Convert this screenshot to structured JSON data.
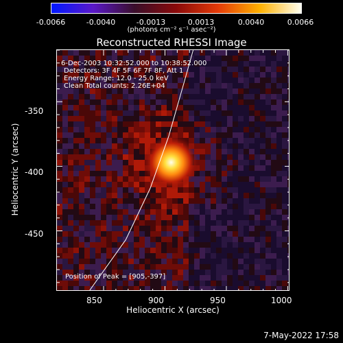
{
  "colorbar": {
    "ticks": [
      "-0.0066",
      "-0.0040",
      "-0.0013",
      "0.0013",
      "0.0040",
      "0.0066"
    ],
    "unit": "(photons cm⁻² s⁻¹ asec⁻²)",
    "colors": [
      "#0018ff",
      "#5a18c8",
      "#3a0e2a",
      "#8a0a0a",
      "#e43a08",
      "#ffb000",
      "#fffff0"
    ]
  },
  "chart_data": {
    "type": "heatmap",
    "title": "Reconstructed RHESSI Image",
    "xlabel": "Heliocentric X (arcsec)",
    "ylabel": "Heliocentric Y (arcsec)",
    "xlim": [
      812,
      1002
    ],
    "ylim": [
      -497,
      -310
    ],
    "xticks": [
      "850",
      "900",
      "950",
      "1000"
    ],
    "yticks": [
      "-350",
      "-400",
      "-450"
    ],
    "peak": {
      "x": 905,
      "y": -397,
      "value": 0.0066
    },
    "limb_curve": [
      [
        838,
        -497
      ],
      [
        868,
        -457
      ],
      [
        888,
        -417
      ],
      [
        903,
        -377
      ],
      [
        915,
        -337
      ],
      [
        923,
        -310
      ]
    ]
  },
  "info": {
    "time": "6-Dec-2003 10:32:52.000 to 10:38:52.000",
    "detectors": "Detectors: 3F 4F 5F 6F 7F 8F, Att 1",
    "energy": "Energy Range: 12.0 - 25.0 keV",
    "clean": "Clean    Total counts: 2.26E+04",
    "peak_text": "Position of Peak = [905,-397]"
  },
  "timestamp": "7-May-2022 17:58"
}
